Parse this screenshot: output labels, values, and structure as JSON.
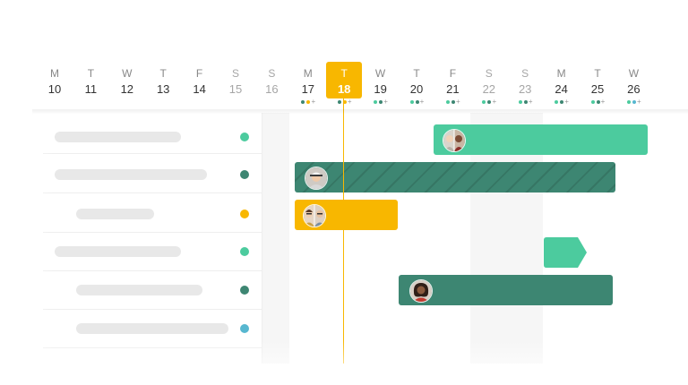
{
  "colors": {
    "today": "#f8b700",
    "green_light": "#4ccb9e",
    "green_dark": "#3d8672",
    "blue": "#57b7d0",
    "dot_weekday_a": "#3d8672",
    "dot_weekday_b": "#f8b700"
  },
  "days": [
    {
      "dow": "M",
      "num": "10",
      "weekend": false,
      "today": false
    },
    {
      "dow": "T",
      "num": "11",
      "weekend": false,
      "today": false
    },
    {
      "dow": "W",
      "num": "12",
      "weekend": false,
      "today": false
    },
    {
      "dow": "T",
      "num": "13",
      "weekend": false,
      "today": false
    },
    {
      "dow": "F",
      "num": "14",
      "weekend": false,
      "today": false
    },
    {
      "dow": "S",
      "num": "15",
      "weekend": true,
      "today": false
    },
    {
      "dow": "S",
      "num": "16",
      "weekend": true,
      "today": false
    },
    {
      "dow": "M",
      "num": "17",
      "weekend": false,
      "today": false,
      "dots": [
        "#3d8672",
        "#f8b700"
      ]
    },
    {
      "dow": "T",
      "num": "18",
      "weekend": false,
      "today": true,
      "dots": [
        "#3d8672",
        "#f8b700"
      ]
    },
    {
      "dow": "W",
      "num": "19",
      "weekend": false,
      "today": false,
      "dots": [
        "#4ccb9e",
        "#3d8672"
      ]
    },
    {
      "dow": "T",
      "num": "20",
      "weekend": false,
      "today": false,
      "dots": [
        "#4ccb9e",
        "#3d8672"
      ]
    },
    {
      "dow": "F",
      "num": "21",
      "weekend": false,
      "today": false,
      "dots": [
        "#4ccb9e",
        "#3d8672"
      ]
    },
    {
      "dow": "S",
      "num": "22",
      "weekend": true,
      "today": false,
      "dots": [
        "#4ccb9e",
        "#3d8672"
      ]
    },
    {
      "dow": "S",
      "num": "23",
      "weekend": true,
      "today": false,
      "dots": [
        "#4ccb9e",
        "#3d8672"
      ]
    },
    {
      "dow": "M",
      "num": "24",
      "weekend": false,
      "today": false,
      "dots": [
        "#4ccb9e",
        "#3d8672"
      ]
    },
    {
      "dow": "T",
      "num": "25",
      "weekend": false,
      "today": false,
      "dots": [
        "#4ccb9e",
        "#3d8672"
      ]
    },
    {
      "dow": "W",
      "num": "26",
      "weekend": false,
      "today": false,
      "dots": [
        "#4ccb9e",
        "#57b7d0"
      ]
    }
  ],
  "more_marker": "+",
  "rows": [
    {
      "indent": false,
      "dot_color": "#4ccb9e"
    },
    {
      "indent": false,
      "dot_color": "#3d8672"
    },
    {
      "indent": true,
      "dot_color": "#f8b700"
    },
    {
      "indent": false,
      "dot_color": "#4ccb9e"
    },
    {
      "indent": true,
      "dot_color": "#3d8672"
    },
    {
      "indent": true,
      "dot_color": "#57b7d0"
    }
  ],
  "tasks": [
    {
      "row": 0,
      "color": "#4ccb9e",
      "hatched": false,
      "avatars": [
        "avatar-pair-icon"
      ]
    },
    {
      "row": 1,
      "color": "#3d8672",
      "hatched": true,
      "avatars": [
        "avatar-man-cap-icon"
      ]
    },
    {
      "row": 2,
      "color": "#f8b700",
      "hatched": false,
      "avatars": [
        "avatar-pair-glasses-icon"
      ]
    },
    {
      "row": 3,
      "color": "#4ccb9e",
      "milestone": true
    },
    {
      "row": 4,
      "color": "#3d8672",
      "hatched": false,
      "avatars": [
        "avatar-woman-icon"
      ]
    }
  ]
}
